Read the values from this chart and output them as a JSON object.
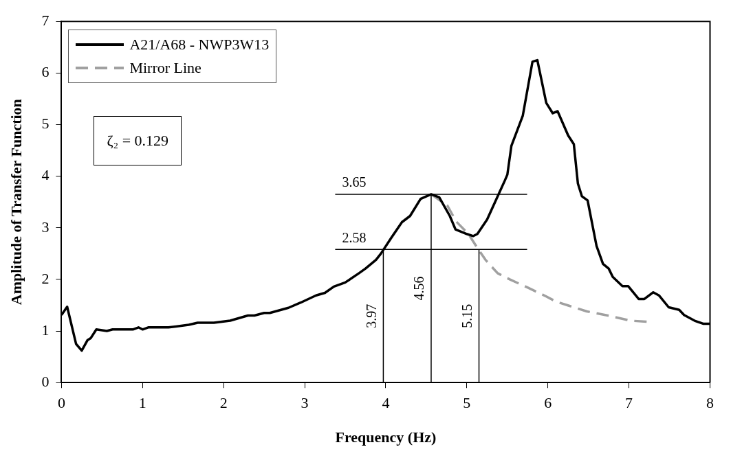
{
  "chart_data": {
    "type": "line",
    "xlabel": "Frequency (Hz)",
    "ylabel": "Amplitude of Transfer Function",
    "xlim": [
      0,
      8
    ],
    "xticks": [
      0,
      1,
      2,
      3,
      4,
      5,
      6,
      7,
      8
    ],
    "ylim": [
      0,
      7
    ],
    "yticks": [
      0,
      1,
      2,
      3,
      4,
      5,
      6,
      7
    ],
    "grid": false,
    "legend": "top left",
    "marker": "none",
    "annotations": [
      "ζ₂ = 0.129"
    ],
    "ref_lines": [
      {
        "axis": "y",
        "value": 3.65,
        "label": "3.65"
      },
      {
        "axis": "y",
        "value": 2.58,
        "label": "2.58"
      },
      {
        "axis": "x",
        "value": 3.97,
        "label": "3.97"
      },
      {
        "axis": "x",
        "value": 4.56,
        "label": "4.56"
      },
      {
        "axis": "x",
        "value": 5.15,
        "label": "5.15"
      }
    ],
    "series": [
      {
        "name": "A21/A68 - NWP3W13",
        "color": "#000000",
        "line_style": "solid",
        "x": [
          0,
          0.07,
          0.18,
          0.25,
          0.32,
          0.36,
          0.43,
          0.56,
          0.63,
          0.88,
          0.95,
          1.0,
          1.07,
          1.32,
          1.57,
          1.68,
          1.88,
          2.08,
          2.3,
          2.38,
          2.5,
          2.57,
          2.8,
          2.95,
          3.14,
          3.25,
          3.36,
          3.5,
          3.67,
          3.75,
          3.88,
          3.94,
          4.07,
          4.2,
          4.3,
          4.43,
          4.56,
          4.66,
          4.79,
          4.86,
          5.0,
          5.08,
          5.13,
          5.25,
          5.38,
          5.47,
          5.5,
          5.55,
          5.69,
          5.81,
          5.87,
          5.98,
          6.06,
          6.12,
          6.25,
          6.32,
          6.37,
          6.42,
          6.49,
          6.6,
          6.68,
          6.75,
          6.8,
          6.92,
          6.99,
          7.12,
          7.19,
          7.3,
          7.37,
          7.49,
          7.62,
          7.68,
          7.81,
          7.92,
          8.0
        ],
        "values": [
          1.31,
          1.47,
          0.75,
          0.62,
          0.82,
          0.86,
          1.03,
          1.0,
          1.03,
          1.03,
          1.07,
          1.03,
          1.07,
          1.07,
          1.12,
          1.16,
          1.16,
          1.2,
          1.3,
          1.3,
          1.35,
          1.35,
          1.45,
          1.55,
          1.69,
          1.74,
          1.86,
          1.94,
          2.12,
          2.21,
          2.38,
          2.5,
          2.81,
          3.11,
          3.23,
          3.56,
          3.65,
          3.59,
          3.23,
          2.97,
          2.88,
          2.84,
          2.88,
          3.16,
          3.61,
          3.92,
          4.03,
          4.59,
          5.17,
          6.22,
          6.25,
          5.42,
          5.22,
          5.26,
          4.79,
          4.62,
          3.86,
          3.61,
          3.53,
          2.65,
          2.3,
          2.21,
          2.05,
          1.87,
          1.87,
          1.62,
          1.62,
          1.75,
          1.69,
          1.46,
          1.41,
          1.31,
          1.2,
          1.14,
          1.14
        ]
      },
      {
        "name": "Mirror Line",
        "color": "#a0a0a0",
        "line_style": "dashed",
        "x": [
          4.56,
          4.76,
          4.87,
          5.02,
          5.13,
          5.23,
          5.38,
          5.53,
          5.74,
          5.98,
          6.1,
          6.26,
          6.48,
          6.77,
          7.02,
          7.22
        ],
        "values": [
          3.65,
          3.43,
          3.12,
          2.88,
          2.61,
          2.38,
          2.12,
          2.0,
          1.85,
          1.67,
          1.57,
          1.49,
          1.38,
          1.29,
          1.2,
          1.18
        ]
      }
    ]
  }
}
